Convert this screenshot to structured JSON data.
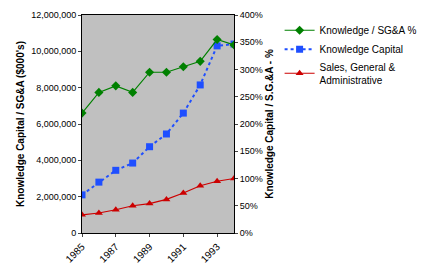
{
  "chart_data": {
    "type": "line",
    "x": [
      1985,
      1986,
      1987,
      1988,
      1989,
      1990,
      1991,
      1992,
      1993,
      1994
    ],
    "xlim": [
      1985,
      1994
    ],
    "xticks": [
      1985,
      1987,
      1989,
      1991,
      1993
    ],
    "y_label": "Knowledge Capital / SG&A ($000's)",
    "y2_label": "Knowledge Capital / S.G.&A - %",
    "ylim": [
      0,
      12000000
    ],
    "yticks": [
      0,
      {
        "value": 2000000,
        "label": "2,000,000"
      },
      {
        "value": 4000000,
        "label": "4,000,000"
      },
      {
        "value": 6000000,
        "label": "6,000,000"
      },
      {
        "value": 8000000,
        "label": "8,000,000"
      },
      {
        "value": 10000000,
        "label": "10,000,000"
      },
      {
        "value": 12000000,
        "label": "12,000,000"
      }
    ],
    "y2lim": [
      0,
      400
    ],
    "y2ticks": [
      {
        "value": 0,
        "label": "0%"
      },
      {
        "value": 50,
        "label": "50%"
      },
      {
        "value": 100,
        "label": "100%"
      },
      {
        "value": 150,
        "label": "150%"
      },
      {
        "value": 200,
        "label": "200%"
      },
      {
        "value": 250,
        "label": "250%"
      },
      {
        "value": 300,
        "label": "300%"
      },
      {
        "value": 350,
        "label": "350%"
      },
      {
        "value": 400,
        "label": "400%"
      }
    ],
    "grid": false,
    "legend": "right",
    "series": [
      {
        "name": "Knowledge / SG&A %",
        "color": "#008000",
        "marker": "diamond",
        "line_style": "solid",
        "axis": "y2",
        "values": [
          220,
          258,
          270,
          258,
          295,
          295,
          305,
          315,
          355,
          345
        ]
      },
      {
        "name": "Knowledge Capital",
        "color": "#1f4fff",
        "marker": "square",
        "line_style": "dotted",
        "values": [
          2100000,
          2800000,
          3450000,
          3850000,
          4750000,
          5450000,
          6600000,
          8150000,
          10300000,
          10400000
        ]
      },
      {
        "name": "Sales, General & Administrative",
        "color": "#cc0000",
        "marker": "triangle-up",
        "line_style": "solid",
        "values": [
          1000000,
          1100000,
          1280000,
          1500000,
          1620000,
          1850000,
          2200000,
          2600000,
          2850000,
          3000000
        ]
      }
    ]
  }
}
